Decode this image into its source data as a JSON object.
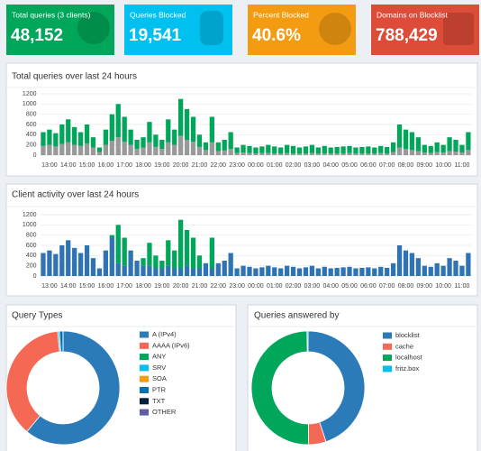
{
  "stats": [
    {
      "title": "Total queries (3 clients)",
      "value": "48,152",
      "color": "#00a65a"
    },
    {
      "title": "Queries Blocked",
      "value": "19,541",
      "color": "#00c0ef"
    },
    {
      "title": "Percent Blocked",
      "value": "40.6%",
      "color": "#f39c12"
    },
    {
      "title": "Domains on Blocklist",
      "value": "788,429",
      "color": "#dd4b39"
    }
  ],
  "chart_data": [
    {
      "type": "bar",
      "title": "Total queries over last 24 hours",
      "stacked": true,
      "grid": true,
      "categories": [
        null,
        "13:00",
        null,
        null,
        "14:00",
        null,
        null,
        "15:00",
        null,
        null,
        "16:00",
        null,
        null,
        "17:00",
        null,
        null,
        "18:00",
        null,
        null,
        "19:00",
        null,
        null,
        "20:00",
        null,
        null,
        "21:00",
        null,
        null,
        "22:00",
        null,
        null,
        "23:00",
        null,
        null,
        "00:00",
        null,
        null,
        "01:00",
        null,
        null,
        "02:00",
        null,
        null,
        "03:00",
        null,
        null,
        "04:00",
        null,
        null,
        "05:00",
        null,
        null,
        "06:00",
        null,
        null,
        "07:00",
        null,
        null,
        "08:00",
        null,
        null,
        "09:00",
        null,
        null,
        "10:00",
        null,
        null,
        "11:00",
        null
      ],
      "series": [
        {
          "color": "#999999",
          "values": [
            180,
            200,
            170,
            220,
            250,
            200,
            180,
            230,
            150,
            60,
            200,
            280,
            350,
            260,
            200,
            120,
            150,
            250,
            160,
            120,
            250,
            200,
            380,
            300,
            260,
            160,
            100,
            250,
            80,
            90,
            120,
            40,
            50,
            40,
            30,
            40,
            40,
            30,
            30,
            40,
            30,
            30,
            30,
            40,
            30,
            30,
            30,
            30,
            30,
            40,
            30,
            30,
            30,
            30,
            40,
            30,
            60,
            150,
            120,
            100,
            80,
            50,
            40,
            60,
            50,
            80,
            70,
            50,
            100
          ]
        },
        {
          "color": "#00a65a",
          "values": [
            270,
            300,
            260,
            380,
            450,
            350,
            270,
            370,
            200,
            90,
            300,
            520,
            650,
            490,
            300,
            180,
            200,
            400,
            240,
            180,
            450,
            300,
            720,
            600,
            490,
            240,
            150,
            500,
            170,
            210,
            330,
            110,
            150,
            140,
            120,
            130,
            160,
            140,
            120,
            160,
            150,
            120,
            140,
            160,
            120,
            150,
            120,
            130,
            140,
            140,
            120,
            130,
            140,
            120,
            140,
            130,
            190,
            450,
            380,
            350,
            270,
            150,
            140,
            190,
            150,
            270,
            230,
            150,
            350
          ]
        }
      ],
      "ylim": [
        0,
        1200
      ],
      "yticks": [
        0,
        200,
        400,
        600,
        800,
        1000,
        1200
      ]
    },
    {
      "type": "bar",
      "title": "Client activity over last 24 hours",
      "stacked": true,
      "grid": true,
      "categories": [
        null,
        "13:00",
        null,
        null,
        "14:00",
        null,
        null,
        "15:00",
        null,
        null,
        "16:00",
        null,
        null,
        "17:00",
        null,
        null,
        "18:00",
        null,
        null,
        "19:00",
        null,
        null,
        "20:00",
        null,
        null,
        "21:00",
        null,
        null,
        "22:00",
        null,
        null,
        "23:00",
        null,
        null,
        "00:00",
        null,
        null,
        "01:00",
        null,
        null,
        "02:00",
        null,
        null,
        "03:00",
        null,
        null,
        "04:00",
        null,
        null,
        "05:00",
        null,
        null,
        "06:00",
        null,
        null,
        "07:00",
        null,
        null,
        "08:00",
        null,
        null,
        "09:00",
        null,
        null,
        "10:00",
        null,
        null,
        "11:00",
        null
      ],
      "series": [
        {
          "color": "#2f73b4",
          "values": [
            450,
            500,
            430,
            600,
            700,
            550,
            450,
            600,
            350,
            150,
            500,
            750,
            250,
            200,
            500,
            300,
            200,
            200,
            150,
            150,
            200,
            150,
            150,
            200,
            150,
            150,
            250,
            150,
            250,
            300,
            450,
            150,
            200,
            180,
            150,
            170,
            200,
            170,
            150,
            200,
            180,
            150,
            170,
            200,
            150,
            180,
            150,
            160,
            170,
            180,
            150,
            160,
            170,
            150,
            180,
            160,
            250,
            600,
            500,
            450,
            350,
            200,
            180,
            250,
            200,
            350,
            300,
            200,
            450
          ]
        },
        {
          "color": "#00a65a",
          "values": [
            0,
            0,
            0,
            0,
            0,
            0,
            0,
            0,
            0,
            0,
            0,
            50,
            750,
            550,
            0,
            0,
            150,
            450,
            250,
            150,
            500,
            350,
            950,
            700,
            600,
            250,
            0,
            600,
            0,
            0,
            0,
            0,
            0,
            0,
            0,
            0,
            0,
            0,
            0,
            0,
            0,
            0,
            0,
            0,
            0,
            0,
            0,
            0,
            0,
            0,
            0,
            0,
            0,
            0,
            0,
            0,
            0,
            0,
            0,
            0,
            0,
            0,
            0,
            0,
            0,
            0,
            0,
            0,
            0
          ]
        }
      ],
      "ylim": [
        0,
        1200
      ],
      "yticks": [
        0,
        200,
        400,
        600,
        800,
        1000,
        1200
      ]
    },
    {
      "type": "pie",
      "title": "Query Types",
      "categories": [
        "A (IPv4)",
        "AAAA (IPv6)",
        "ANY",
        "SRV",
        "SOA",
        "PTR",
        "TXT",
        "OTHER"
      ],
      "values": [
        61,
        37.5,
        0,
        0.5,
        0,
        1,
        0,
        0
      ],
      "colors": [
        "#2b7bb9",
        "#f56954",
        "#00a65a",
        "#00c0ef",
        "#f39c12",
        "#0073b7",
        "#001f3f",
        "#605ca8"
      ]
    },
    {
      "type": "pie",
      "title": "Queries answered by",
      "categories": [
        "blocklist",
        "cache",
        "localhost",
        "fritz.box"
      ],
      "values": [
        45,
        5,
        50,
        0.3
      ],
      "colors": [
        "#2b7bb9",
        "#f56954",
        "#00a65a",
        "#00c0ef"
      ]
    }
  ]
}
